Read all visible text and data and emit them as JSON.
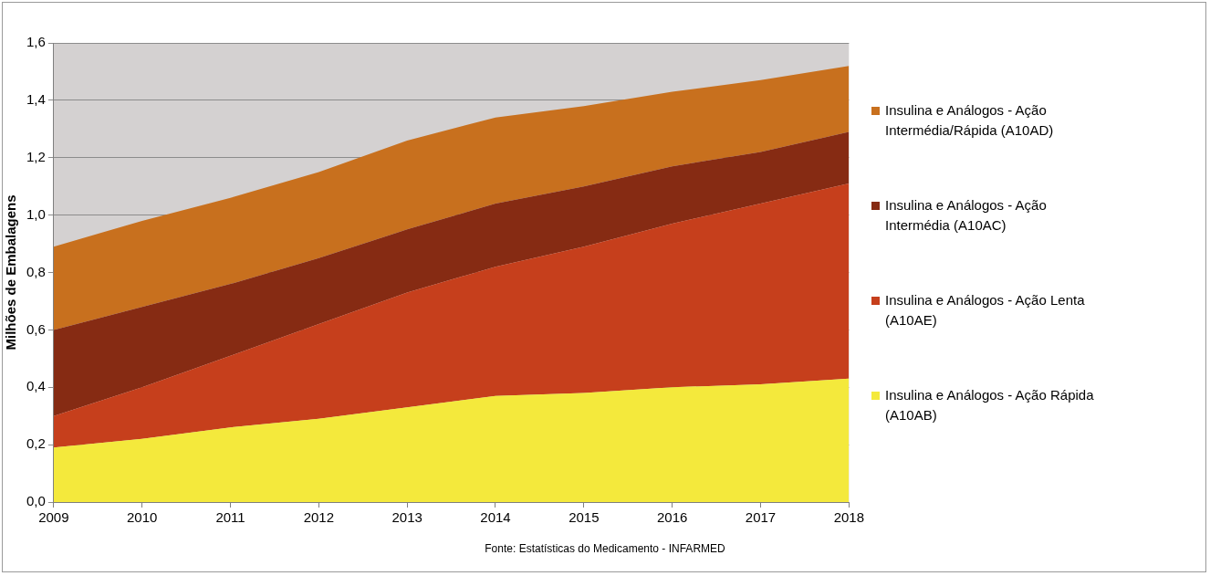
{
  "chart_data": {
    "type": "area",
    "stacked": true,
    "ylabel": "Milhões de Embalagens",
    "categories": [
      "2009",
      "2010",
      "2011",
      "2012",
      "2013",
      "2014",
      "2015",
      "2016",
      "2017",
      "2018"
    ],
    "series": [
      {
        "name": "Insulina e Análogos - Ação Rápida (A10AB)",
        "color": "#f4e93c",
        "values": [
          0.19,
          0.22,
          0.26,
          0.29,
          0.33,
          0.37,
          0.38,
          0.4,
          0.41,
          0.43
        ]
      },
      {
        "name": "Insulina e Análogos - Ação Lenta (A10AE)",
        "color": "#c63f1c",
        "values": [
          0.11,
          0.18,
          0.25,
          0.33,
          0.4,
          0.45,
          0.51,
          0.57,
          0.63,
          0.68
        ]
      },
      {
        "name": "Insulina e Análogos - Ação Intermédia (A10AC)",
        "color": "#862b13",
        "values": [
          0.3,
          0.28,
          0.25,
          0.23,
          0.22,
          0.22,
          0.21,
          0.2,
          0.18,
          0.18
        ]
      },
      {
        "name": "Insulina e Análogos - Ação Intermédia/Rápida (A10AD)",
        "color": "#c8701e",
        "values": [
          0.29,
          0.3,
          0.3,
          0.3,
          0.31,
          0.3,
          0.28,
          0.26,
          0.25,
          0.23
        ]
      }
    ],
    "ylim": [
      0,
      1.6
    ],
    "yticks": [
      {
        "value": 0,
        "label": "0,0"
      },
      {
        "value": 0.2,
        "label": "0,2"
      },
      {
        "value": 0.4,
        "label": "0,4"
      },
      {
        "value": 0.6,
        "label": "0,6"
      },
      {
        "value": 0.8,
        "label": "0,8"
      },
      {
        "value": 1.0,
        "label": "1,0"
      },
      {
        "value": 1.2,
        "label": "1,2"
      },
      {
        "value": 1.4,
        "label": "1,4"
      },
      {
        "value": 1.6,
        "label": "1,6"
      }
    ],
    "grid": "y",
    "legend": "right",
    "annotations": [
      "Fonte: Estatísticas do Medicamento - INFARMED"
    ]
  }
}
